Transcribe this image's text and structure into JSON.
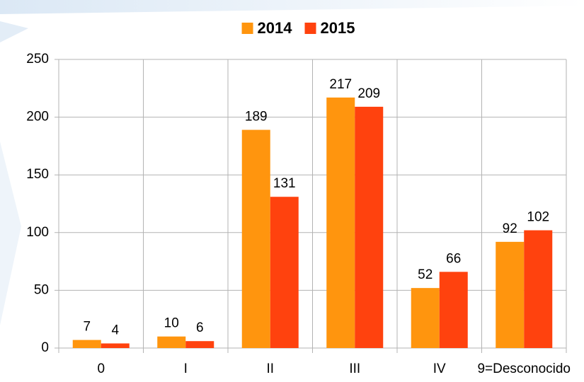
{
  "chart_data": {
    "type": "bar",
    "categories": [
      "0",
      "I",
      "II",
      "III",
      "IV",
      "9=Desconocido"
    ],
    "series": [
      {
        "name": "2014",
        "color": "#ff950e",
        "values": [
          7,
          10,
          189,
          217,
          52,
          92
        ]
      },
      {
        "name": "2015",
        "color": "#ff420e",
        "values": [
          4,
          6,
          131,
          209,
          66,
          102
        ]
      }
    ],
    "ylim": [
      0,
      250
    ],
    "yticks": [
      0,
      50,
      100,
      150,
      200,
      250
    ],
    "grid": true,
    "legend": "top"
  }
}
